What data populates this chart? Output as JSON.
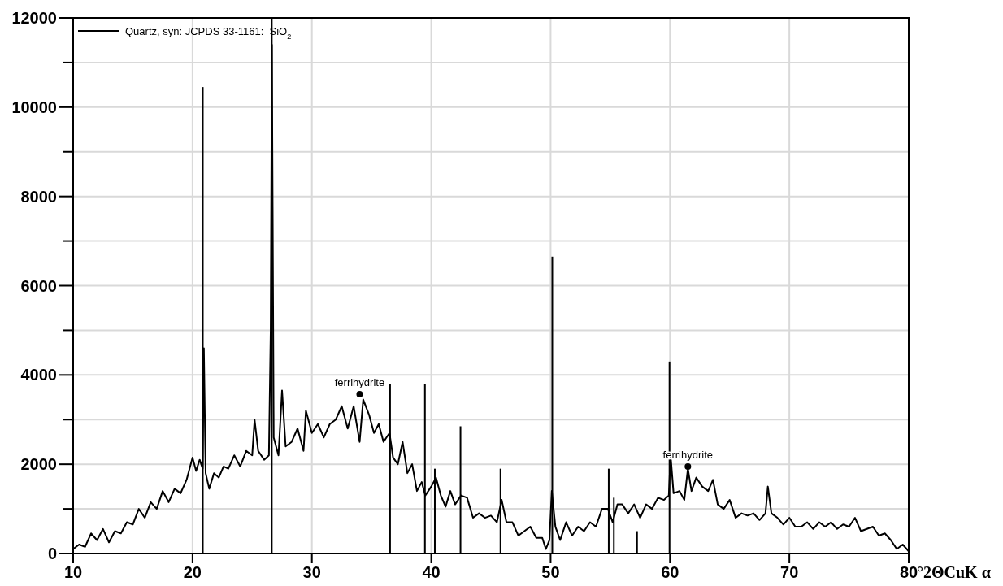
{
  "chart_data": {
    "type": "line",
    "xlabel": "°2ΘCuK α",
    "xlim": [
      10,
      80
    ],
    "xticks": [
      10,
      20,
      30,
      40,
      50,
      60,
      70,
      80
    ],
    "ylim": [
      0,
      12000
    ],
    "yticks": [
      0,
      {
        "value": 1000,
        "label": null
      },
      2000,
      {
        "value": 3000,
        "label": null
      },
      4000,
      {
        "value": 5000,
        "label": null
      },
      6000,
      {
        "value": 7000,
        "label": null
      },
      8000,
      {
        "value": 9000,
        "label": null
      },
      10000,
      {
        "value": 11000,
        "label": null
      },
      12000
    ],
    "grid": true,
    "legend": "top left",
    "marker": "none",
    "line_style": "solid",
    "annotations": [
      {
        "text": "ferrihydrite",
        "x": 34,
        "y": 3570
      },
      {
        "text": "ferrihydrite",
        "x": 61.5,
        "y": 1950
      }
    ],
    "series": [
      {
        "color": "#000000",
        "x": [
          10,
          10.5,
          11,
          11.5,
          12,
          12.5,
          13,
          13.5,
          14,
          14.5,
          15,
          15.5,
          16,
          16.5,
          17,
          17.5,
          18,
          18.5,
          19,
          19.5,
          20,
          20.3,
          20.6,
          20.85,
          20.95,
          21.1,
          21.4,
          21.8,
          22.2,
          22.6,
          23,
          23.5,
          24,
          24.5,
          25,
          25.2,
          25.5,
          26,
          26.4,
          26.55,
          26.65,
          26.8,
          27.2,
          27.5,
          27.8,
          28.3,
          28.8,
          29.3,
          29.5,
          30,
          30.5,
          31,
          31.5,
          32,
          32.5,
          33,
          33.5,
          34,
          34.3,
          34.8,
          35.2,
          35.6,
          36,
          36.5,
          36.8,
          37.2,
          37.6,
          38,
          38.4,
          38.8,
          39.2,
          39.5,
          40,
          40.4,
          40.8,
          41.2,
          41.6,
          42,
          42.5,
          43,
          43.5,
          44,
          44.5,
          45,
          45.5,
          45.9,
          46.3,
          46.8,
          47.3,
          47.8,
          48.3,
          48.8,
          49.3,
          49.6,
          49.9,
          50.1,
          50.4,
          50.8,
          51.3,
          51.8,
          52.3,
          52.8,
          53.3,
          53.8,
          54.3,
          54.8,
          55.2,
          55.6,
          56,
          56.5,
          57,
          57.5,
          58,
          58.5,
          59,
          59.5,
          59.9,
          60.05,
          60.3,
          60.8,
          61.2,
          61.5,
          61.8,
          62.2,
          62.7,
          63.2,
          63.6,
          64,
          64.5,
          65,
          65.5,
          66,
          66.5,
          67,
          67.5,
          68,
          68.2,
          68.5,
          69,
          69.5,
          70,
          70.5,
          71,
          71.5,
          72,
          72.5,
          73,
          73.5,
          74,
          74.5,
          75,
          75.5,
          76,
          76.5,
          77,
          77.5,
          78,
          78.5,
          79,
          79.5,
          80
        ],
        "values": [
          100,
          200,
          150,
          450,
          300,
          550,
          250,
          500,
          450,
          700,
          650,
          1000,
          800,
          1150,
          1000,
          1400,
          1150,
          1450,
          1350,
          1650,
          2150,
          1850,
          2100,
          1900,
          4600,
          1800,
          1450,
          1800,
          1700,
          1950,
          1900,
          2200,
          1950,
          2300,
          2200,
          3000,
          2300,
          2100,
          2200,
          5000,
          11400,
          2600,
          2200,
          3650,
          2400,
          2500,
          2800,
          2300,
          3200,
          2700,
          2900,
          2600,
          2900,
          3000,
          3300,
          2800,
          3300,
          2500,
          3450,
          3100,
          2700,
          2900,
          2500,
          2700,
          2150,
          2000,
          2500,
          1800,
          2000,
          1400,
          1600,
          1300,
          1500,
          1700,
          1300,
          1050,
          1400,
          1100,
          1300,
          1250,
          800,
          900,
          800,
          850,
          700,
          1200,
          700,
          700,
          400,
          500,
          600,
          350,
          350,
          100,
          300,
          1400,
          600,
          300,
          700,
          400,
          600,
          500,
          700,
          600,
          1000,
          1000,
          700,
          1100,
          1100,
          900,
          1100,
          800,
          1100,
          1000,
          1250,
          1200,
          1300,
          2200,
          1350,
          1400,
          1200,
          1900,
          1400,
          1700,
          1500,
          1400,
          1650,
          1100,
          1000,
          1200,
          800,
          900,
          850,
          900,
          750,
          900,
          1500,
          900,
          800,
          650,
          800,
          600,
          600,
          700,
          550,
          700,
          600,
          700,
          550,
          650,
          600,
          800,
          500,
          550,
          600,
          400,
          450,
          300,
          100,
          200,
          50
        ]
      },
      {
        "type": "bar",
        "name": "Quartz, syn: JCPDS 33-1161:  SiO$_{2}$",
        "color": "#000000",
        "x": [
          20.86,
          26.64,
          36.55,
          39.47,
          40.3,
          42.45,
          45.8,
          50.14,
          54.87,
          55.3,
          57.24,
          59.96
        ],
        "values": [
          10450,
          12000,
          3800,
          3800,
          1900,
          2850,
          1900,
          6650,
          1900,
          1250,
          500,
          4300
        ]
      }
    ]
  }
}
